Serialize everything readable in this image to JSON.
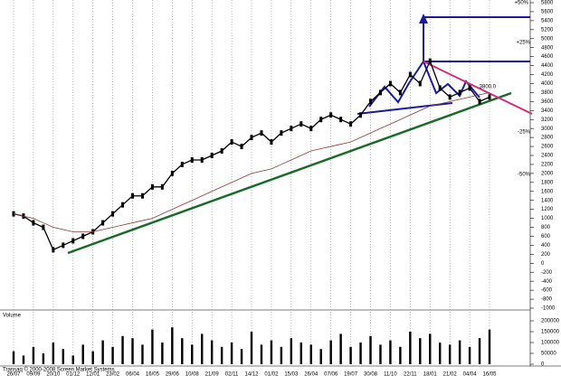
{
  "chart_data": [
    {
      "type": "line",
      "categories": [
        "26/07",
        null,
        "09/09",
        null,
        "20/10",
        null,
        "01/12",
        null,
        "12/01",
        null,
        "23/02",
        null,
        "06/04",
        null,
        "16/05",
        null,
        "29/06",
        null,
        "10/08",
        null,
        "21/09",
        null,
        "02/11",
        null,
        "14/12",
        null,
        "01/02",
        null,
        "15/03",
        null,
        "26/04",
        null,
        "07/06",
        null,
        "19/07",
        null,
        "30/08",
        null,
        "11/10",
        null,
        "22/11",
        null,
        "18/01",
        null,
        "21/02",
        null,
        "04/04",
        null,
        "16/05"
      ],
      "series": [
        {
          "name": "Price",
          "color": "#000000",
          "values": [
            1100,
            1050,
            900,
            800,
            300,
            400,
            500,
            600,
            700,
            900,
            1100,
            1300,
            1500,
            1500,
            1700,
            1700,
            2000,
            2200,
            2300,
            2300,
            2400,
            2500,
            2700,
            2600,
            2800,
            2900,
            2700,
            2900,
            3000,
            3100,
            3000,
            3200,
            3300,
            3200,
            3100,
            3300,
            3600,
            3800,
            4000,
            3800,
            4200,
            4000,
            4500,
            3900,
            3700,
            3800,
            3900,
            3600,
            3700
          ]
        },
        {
          "name": "MA",
          "color": "#8b3a3a",
          "values": [
            1100,
            1050,
            1000,
            900,
            800,
            750,
            700,
            700,
            700,
            750,
            800,
            850,
            900,
            950,
            1000,
            1100,
            1200,
            1300,
            1400,
            1500,
            1600,
            1700,
            1800,
            1900,
            2000,
            2050,
            2100,
            2200,
            2300,
            2400,
            2500,
            2550,
            2600,
            2650,
            2700,
            2800,
            2900,
            3000,
            3100,
            3200,
            3300,
            3400,
            3500,
            3550,
            3600,
            3650,
            3700,
            3750,
            3800
          ]
        }
      ],
      "ylim": [
        -1000,
        5800
      ],
      "yticks": [
        -1000,
        -800,
        -600,
        -400,
        -200,
        0,
        200,
        400,
        600,
        800,
        1000,
        1200,
        1400,
        1600,
        1800,
        2000,
        2200,
        2400,
        2600,
        2800,
        3000,
        3200,
        3400,
        3600,
        3800,
        4000,
        4200,
        4400,
        4600,
        4800,
        5000,
        5200,
        5400,
        5600,
        5800
      ],
      "annotations": [
        "+50%",
        "+25%",
        "-25%",
        "-50%",
        "3800.0"
      ],
      "footer": "Transaq © 2000-2008 Screen Market Systems"
    },
    {
      "type": "bar",
      "title": "Volume",
      "color": "#000000",
      "values": [
        60000,
        40000,
        80000,
        50000,
        100000,
        70000,
        40000,
        90000,
        60000,
        110000,
        80000,
        130000,
        120000,
        90000,
        160000,
        100000,
        170000,
        120000,
        90000,
        140000,
        110000,
        80000,
        100000,
        70000,
        150000,
        90000,
        110000,
        80000,
        120000,
        100000,
        90000,
        70000,
        110000,
        140000,
        80000,
        100000,
        130000,
        90000,
        110000,
        80000,
        150000,
        120000,
        140000,
        100000,
        90000,
        110000,
        80000,
        120000,
        160000
      ],
      "ylim": [
        0,
        200000
      ],
      "yticks": [
        0,
        50000,
        100000,
        150000,
        200000
      ]
    }
  ]
}
